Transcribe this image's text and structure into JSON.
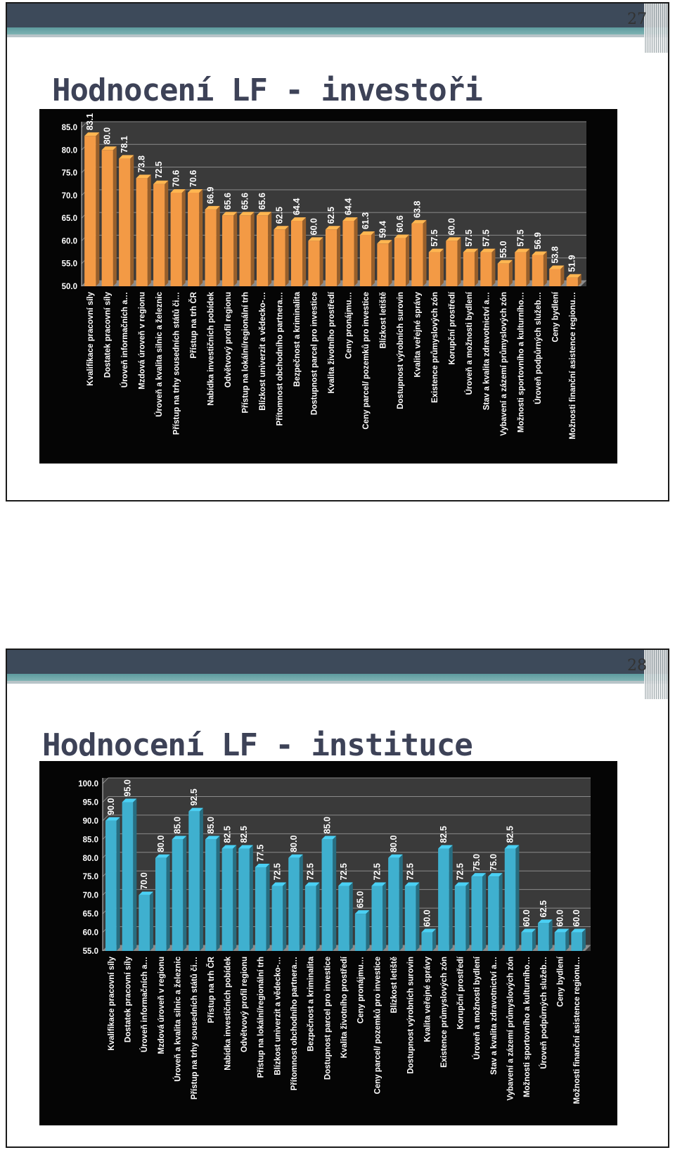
{
  "slides": [
    {
      "page_number": "27",
      "title": "Hodnocení LF - investoři"
    },
    {
      "page_number": "28",
      "title": "Hodnocení LF - instituce"
    }
  ],
  "colors": {
    "panel_bg": "#050505",
    "plot_wall": "#3a3a3a",
    "gridline": "#8a8a8a",
    "text": "#ffffff",
    "bar_orange": "#f39a45",
    "bar_blue": "#3fb0cf"
  },
  "chart_data": [
    {
      "type": "bar",
      "categories": [
        "Kvalifikace pracovní síly",
        "Dostatek pracovní síly",
        "Úroveň informačních a…",
        "Mzdová úroveň v regionu",
        "Úroveň a kvalita silnic a železnic",
        "Přístup na trhy sousedních států či…",
        "Přístup na trh ČR",
        "Nabídka investičních pobídek",
        "Odvětvový profil regionu",
        "Přístup na lokální/regionální trh",
        "Blízkost univerzit a vědecko-…",
        "Přítomnost obchodního partnera…",
        "Bezpečnost a kriminalita",
        "Dostupnost parcel pro investice",
        "Kvalita životního prostředí",
        "Ceny pronájmu…",
        "Ceny parcel/ pozemků pro investice",
        "Blízkost letiště",
        "Dostupnost výrobních surovin",
        "Kvalita veřejné správy",
        "Existence průmyslových zón",
        "Korupční prostředí",
        "Úroveň a možnosti bydlení",
        "Stav a kvalita zdravotnictví a…",
        "Vybavení a zázemí průmyslových zón",
        "Možnosti sportovního a kulturního…",
        "Úroveň podpůrných služeb…",
        "Ceny bydlení",
        "Možnosti finanční asistence regionu…"
      ],
      "values": [
        83.1,
        80.0,
        78.1,
        73.8,
        72.5,
        70.6,
        70.6,
        66.9,
        65.6,
        65.6,
        65.6,
        62.5,
        64.4,
        60.0,
        62.5,
        64.4,
        61.3,
        59.4,
        60.6,
        63.8,
        57.5,
        60.0,
        57.5,
        57.5,
        55.0,
        57.5,
        56.9,
        53.8,
        51.9
      ],
      "value_labels": [
        "83.1",
        "80.0",
        "78.1",
        "73.8",
        "72.5",
        "70.6",
        "70.6",
        "66.9",
        "65.6",
        "65.6",
        "65.6",
        "62.5",
        "64.4",
        "60.0",
        "62.5",
        "64.4",
        "61.3",
        "59.4",
        "60.6",
        "63.8",
        "57.5",
        "60.0",
        "57.5",
        "57.5",
        "55.0",
        "57.5",
        "56.9",
        "53.8",
        "51.9"
      ],
      "yticks": [
        "50.0",
        "55.0",
        "60.0",
        "65.0",
        "70.0",
        "75.0",
        "80.0",
        "85.0"
      ],
      "ylim": [
        50,
        85
      ],
      "grid": true,
      "color": "#f39a45"
    },
    {
      "type": "bar",
      "categories": [
        "Kvalifikace pracovní síly",
        "Dostatek pracovní síly",
        "Úroveň informačních a…",
        "Mzdová úroveň v regionu",
        "Úroveň a kvalita silnic a železnic",
        "Přístup na trhy sousedních států či…",
        "Přístup na trh ČR",
        "Nabídka investičních pobídek",
        "Odvětvový profil regionu",
        "Přístup na lokální/regionální trh",
        "Blízkost univerzit a vědecko-…",
        "Přítomnost obchodního partnera…",
        "Bezpečnost a kriminalita",
        "Dostupnost parcel pro investice",
        "Kvalita životního prostředí",
        "Ceny pronájmu…",
        "Ceny parcel/ pozemků pro investice",
        "Blízkost letiště",
        "Dostupnost výrobních surovin",
        "Kvalita veřejné správy",
        "Existence průmyslových zón",
        "Korupční prostředí",
        "Úroveň a možnosti bydlení",
        "Stav a kvalita zdravotnictví a…",
        "Vybavení a zázemí průmyslových zón",
        "Možnosti sportovního a kulturního…",
        "Úroveň podpůrných služeb…",
        "Ceny bydlení",
        "Možnosti finanční asistence regionu…"
      ],
      "values": [
        90.0,
        95.0,
        70.0,
        80.0,
        85.0,
        92.5,
        85.0,
        82.5,
        82.5,
        77.5,
        72.5,
        80.0,
        72.5,
        85.0,
        72.5,
        65.0,
        72.5,
        80.0,
        72.5,
        60.0,
        82.5,
        72.5,
        75.0,
        75.0,
        82.5,
        60.0,
        62.5,
        60.0,
        60.0
      ],
      "value_labels": [
        "90.0",
        "95.0",
        "70.0",
        "80.0",
        "85.0",
        "92.5",
        "85.0",
        "82.5",
        "82.5",
        "77.5",
        "72.5",
        "80.0",
        "72.5",
        "85.0",
        "72.5",
        "65.0",
        "72.5",
        "80.0",
        "72.5",
        "60.0",
        "82.5",
        "72.5",
        "75.0",
        "75.0",
        "82.5",
        "60.0",
        "62.5",
        "60.0",
        "60.0"
      ],
      "yticks": [
        "55.0",
        "60.0",
        "65.0",
        "70.0",
        "75.0",
        "80.0",
        "85.0",
        "90.0",
        "95.0",
        "100.0"
      ],
      "ylim": [
        55,
        100
      ],
      "grid": true,
      "color": "#3fb0cf"
    }
  ]
}
